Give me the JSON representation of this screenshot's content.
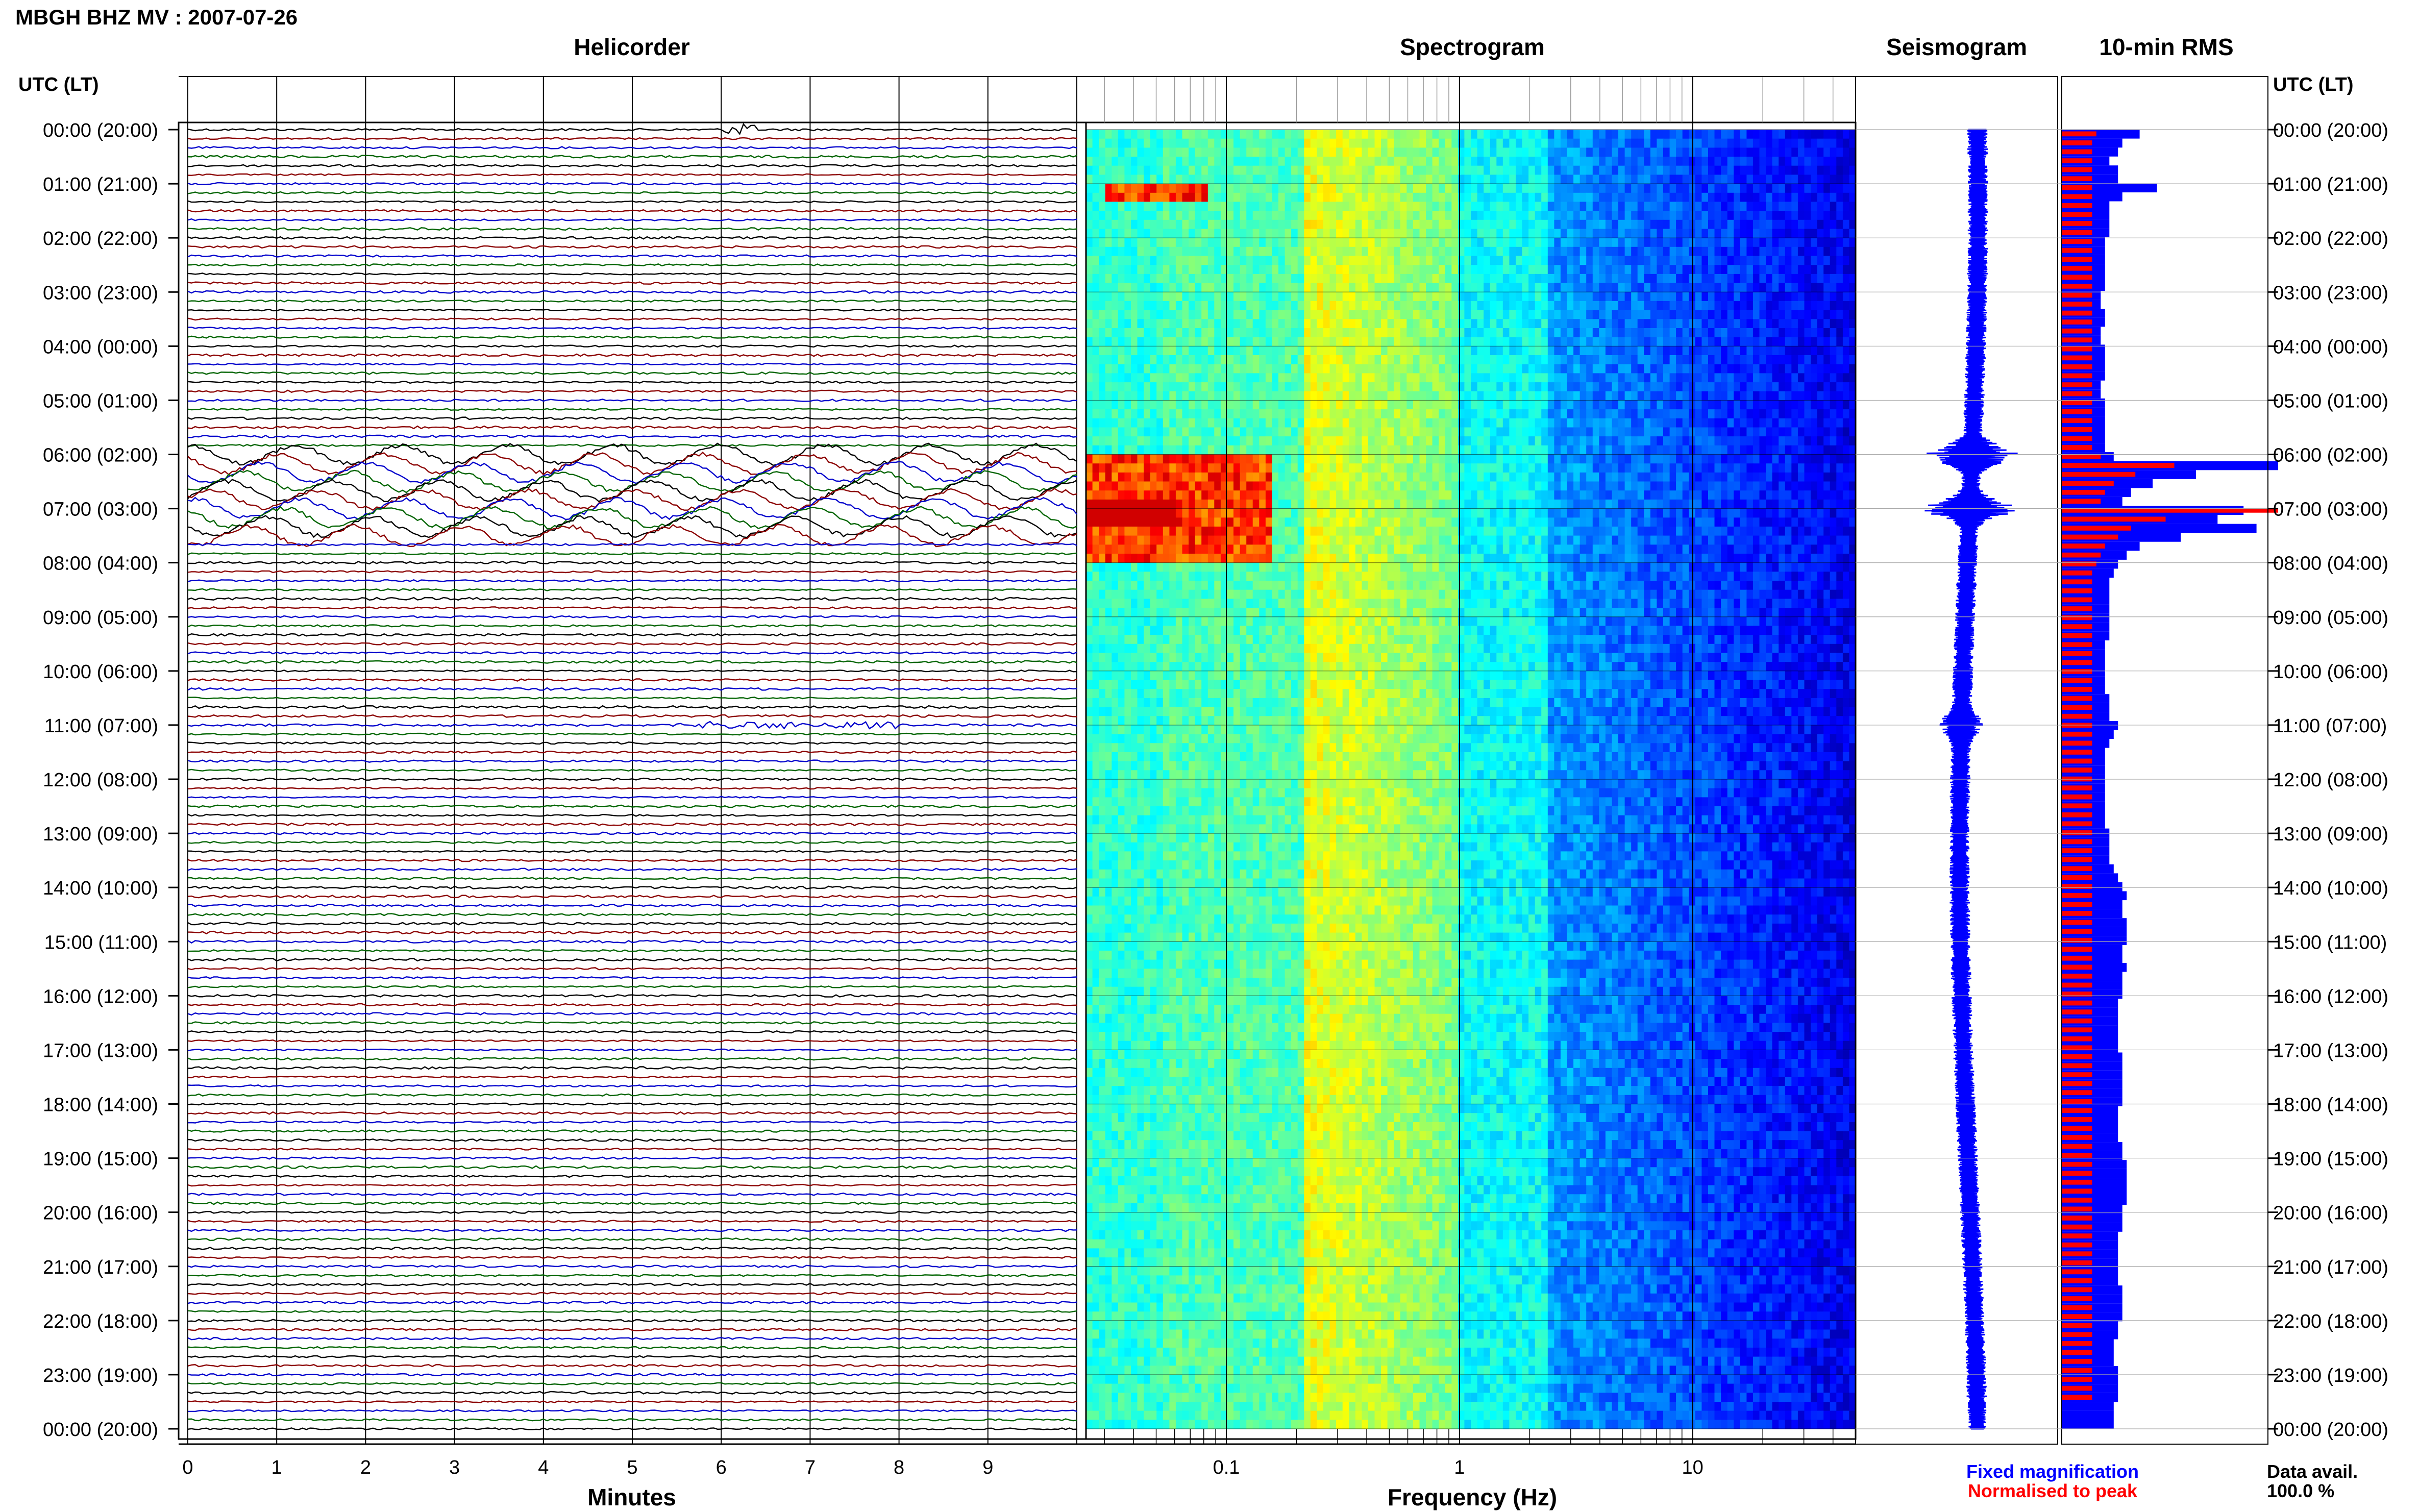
{
  "header": {
    "station_title": "MBGH BHZ MV : 2007-07-26",
    "axis_title_left": "UTC (LT)",
    "axis_title_right": "UTC (LT)"
  },
  "panels": {
    "helicorder": "Helicorder",
    "spectrogram": "Spectrogram",
    "seismogram": "Seismogram",
    "rms": "10-min RMS"
  },
  "footer": {
    "minutes_label": "Minutes",
    "frequency_label": "Frequency (Hz)",
    "legend_fixed": "Fixed magnification",
    "legend_normalised": "Normalised to peak",
    "data_avail_label": "Data avail.",
    "data_avail_value": "100.0 %"
  },
  "colors": {
    "trace_black": "#000000",
    "trace_red": "#8b0000",
    "trace_blue": "#0000cc",
    "trace_green": "#006400",
    "rms_fixed": "#0000ff",
    "rms_normalised": "#ff0000",
    "legend_fixed": "#0000ff",
    "legend_normalised": "#ff0000"
  },
  "chart_data": [
    {
      "type": "line",
      "title": "Helicorder",
      "xlabel": "Minutes",
      "x_ticks": [
        "0",
        "1",
        "2",
        "3",
        "4",
        "5",
        "6",
        "7",
        "8",
        "9"
      ],
      "xlim": [
        0,
        10
      ],
      "row_labels": [
        "00:00 (20:00)",
        "01:00 (21:00)",
        "02:00 (22:00)",
        "03:00 (23:00)",
        "04:00 (00:00)",
        "05:00 (01:00)",
        "06:00 (02:00)",
        "07:00 (03:00)",
        "08:00 (04:00)",
        "09:00 (05:00)",
        "10:00 (06:00)",
        "11:00 (07:00)",
        "12:00 (08:00)",
        "13:00 (09:00)",
        "14:00 (10:00)",
        "15:00 (11:00)",
        "16:00 (12:00)",
        "17:00 (13:00)",
        "18:00 (14:00)",
        "19:00 (15:00)",
        "20:00 (16:00)",
        "21:00 (17:00)",
        "22:00 (18:00)",
        "23:00 (19:00)",
        "00:00 (20:00)"
      ],
      "traces_per_hour": 6,
      "trace_color_cycle": [
        "black",
        "red",
        "blue",
        "green"
      ],
      "events": [
        {
          "hour": 6,
          "minute_start": 0,
          "minute_end": 10,
          "note": "large oscillations"
        },
        {
          "hour": 6.5,
          "minute_start": 0,
          "minute_end": 10,
          "note": "large oscillations"
        },
        {
          "hour": 11,
          "minute_start": 5.5,
          "minute_end": 8.0,
          "note": "elevated noise"
        }
      ]
    },
    {
      "type": "heatmap",
      "title": "Spectrogram",
      "xlabel": "Frequency (Hz)",
      "x_scale": "log",
      "xlim": [
        0.025,
        50
      ],
      "x_ticks": [
        "0.1",
        "1",
        "10"
      ],
      "colormap": "jet",
      "high_energy_intervals": [
        {
          "hour_start": 6.0,
          "hour_end": 8.0,
          "freq_range": [
            0.025,
            0.15
          ]
        },
        {
          "hour_start": 1.0,
          "hour_end": 1.3,
          "freq_range": [
            0.03,
            0.08
          ]
        }
      ]
    },
    {
      "type": "line",
      "title": "Seismogram",
      "events": [
        {
          "hour": 6.0,
          "amplitude": "high"
        },
        {
          "hour": 7.0,
          "amplitude": "high"
        },
        {
          "hour": 11.0,
          "amplitude": "medium"
        }
      ]
    },
    {
      "type": "bar",
      "title": "10-min RMS",
      "orientation": "horizontal",
      "series": [
        {
          "name": "Fixed magnification",
          "color": "#0000ff",
          "values": [
            0.36,
            0.28,
            0.26,
            0.22,
            0.26,
            0.26,
            0.44,
            0.28,
            0.22,
            0.22,
            0.22,
            0.22,
            0.2,
            0.2,
            0.2,
            0.2,
            0.2,
            0.2,
            0.18,
            0.18,
            0.2,
            0.2,
            0.18,
            0.18,
            0.2,
            0.2,
            0.2,
            0.2,
            0.18,
            0.18,
            0.2,
            0.2,
            0.2,
            0.2,
            0.2,
            0.2,
            0.24,
            1.0,
            0.62,
            0.42,
            0.32,
            0.28,
            0.84,
            0.72,
            0.9,
            0.55,
            0.36,
            0.3,
            0.26,
            0.24,
            0.22,
            0.22,
            0.22,
            0.22,
            0.22,
            0.22,
            0.22,
            0.2,
            0.2,
            0.2,
            0.2,
            0.2,
            0.2,
            0.22,
            0.22,
            0.22,
            0.26,
            0.24,
            0.22,
            0.2,
            0.2,
            0.2,
            0.2,
            0.2,
            0.2,
            0.2,
            0.2,
            0.2,
            0.22,
            0.22,
            0.22,
            0.22,
            0.24,
            0.26,
            0.28,
            0.3,
            0.28,
            0.28,
            0.3,
            0.3,
            0.3,
            0.28,
            0.28,
            0.3,
            0.28,
            0.28,
            0.28,
            0.26,
            0.26,
            0.26,
            0.26,
            0.26,
            0.26,
            0.28,
            0.28,
            0.28,
            0.28,
            0.28,
            0.28,
            0.26,
            0.26,
            0.26,
            0.26,
            0.28,
            0.28,
            0.3,
            0.3,
            0.3,
            0.3,
            0.3,
            0.28,
            0.28,
            0.28,
            0.26,
            0.26,
            0.26,
            0.26,
            0.26,
            0.26,
            0.28,
            0.28,
            0.28,
            0.28,
            0.26,
            0.26,
            0.24,
            0.24,
            0.24,
            0.26,
            0.26,
            0.26,
            0.26,
            0.24,
            0.24,
            0.24
          ]
        },
        {
          "name": "Normalised to peak",
          "color": "#ff0000",
          "values": [
            0.16,
            0.14,
            0.14,
            0.14,
            0.14,
            0.14,
            0.14,
            0.14,
            0.14,
            0.14,
            0.14,
            0.14,
            0.14,
            0.14,
            0.14,
            0.14,
            0.14,
            0.14,
            0.14,
            0.14,
            0.14,
            0.14,
            0.14,
            0.14,
            0.14,
            0.14,
            0.14,
            0.14,
            0.14,
            0.14,
            0.14,
            0.14,
            0.14,
            0.14,
            0.14,
            0.14,
            0.18,
            0.52,
            0.34,
            0.24,
            0.2,
            0.18,
            1.0,
            0.48,
            0.32,
            0.26,
            0.2,
            0.18,
            0.16,
            0.14,
            0.14,
            0.14,
            0.14,
            0.14,
            0.14,
            0.14,
            0.14,
            0.14,
            0.14,
            0.14,
            0.14,
            0.14,
            0.14,
            0.14,
            0.14,
            0.14,
            0.14,
            0.14,
            0.14,
            0.14,
            0.14,
            0.14,
            0.14,
            0.14,
            0.14,
            0.14,
            0.14,
            0.14,
            0.14,
            0.14,
            0.14,
            0.14,
            0.14,
            0.14,
            0.14,
            0.14,
            0.14,
            0.14,
            0.14,
            0.14,
            0.14,
            0.14,
            0.14,
            0.14,
            0.14,
            0.14,
            0.14,
            0.14,
            0.14,
            0.14,
            0.14,
            0.14,
            0.14,
            0.14,
            0.14,
            0.14,
            0.14,
            0.14,
            0.14,
            0.14,
            0.14,
            0.14,
            0.14,
            0.14,
            0.14,
            0.14,
            0.14,
            0.14,
            0.14,
            0.14,
            0.14,
            0.14,
            0.14,
            0.14,
            0.14,
            0.14,
            0.14,
            0.14,
            0.14,
            0.14,
            0.14,
            0.14,
            0.14,
            0.14,
            0.14,
            0.14,
            0.14,
            0.14,
            0.14,
            0.14,
            0.14,
            0.14
          ]
        }
      ]
    }
  ]
}
